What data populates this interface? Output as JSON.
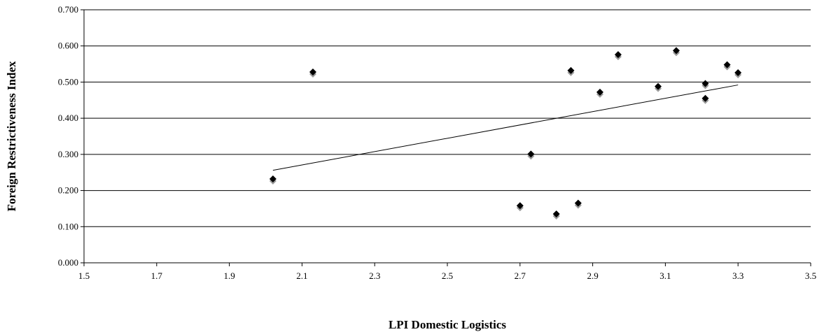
{
  "chart_data": {
    "type": "scatter",
    "title": "",
    "xlabel": "LPI Domestic Logistics",
    "ylabel": "Foreign Restrictiveness Index",
    "xlim": [
      1.5,
      3.5
    ],
    "ylim": [
      0.0,
      0.7
    ],
    "x_ticks": [
      "1.5",
      "1.7",
      "1.9",
      "2.1",
      "2.3",
      "2.5",
      "2.7",
      "2.9",
      "3.1",
      "3.3",
      "3.5"
    ],
    "y_ticks": [
      "0.000",
      "0.100",
      "0.200",
      "0.300",
      "0.400",
      "0.500",
      "0.600",
      "0.700"
    ],
    "grid": "horizontal",
    "legend": "none",
    "marker": "diamond",
    "marker_color": "#000000",
    "marker_shadow_color": "#9a9a9a",
    "points": [
      {
        "x": 2.02,
        "y": 0.232
      },
      {
        "x": 2.13,
        "y": 0.528
      },
      {
        "x": 2.7,
        "y": 0.158
      },
      {
        "x": 2.73,
        "y": 0.301
      },
      {
        "x": 2.8,
        "y": 0.135
      },
      {
        "x": 2.84,
        "y": 0.532
      },
      {
        "x": 2.86,
        "y": 0.165
      },
      {
        "x": 2.92,
        "y": 0.472
      },
      {
        "x": 2.97,
        "y": 0.576
      },
      {
        "x": 3.08,
        "y": 0.488
      },
      {
        "x": 3.13,
        "y": 0.587
      },
      {
        "x": 3.21,
        "y": 0.496
      },
      {
        "x": 3.21,
        "y": 0.455
      },
      {
        "x": 3.27,
        "y": 0.548
      },
      {
        "x": 3.3,
        "y": 0.526
      }
    ],
    "trendline": {
      "type": "linear",
      "x": [
        2.02,
        3.3
      ],
      "y": [
        0.256,
        0.492
      ],
      "color": "#000000"
    }
  }
}
